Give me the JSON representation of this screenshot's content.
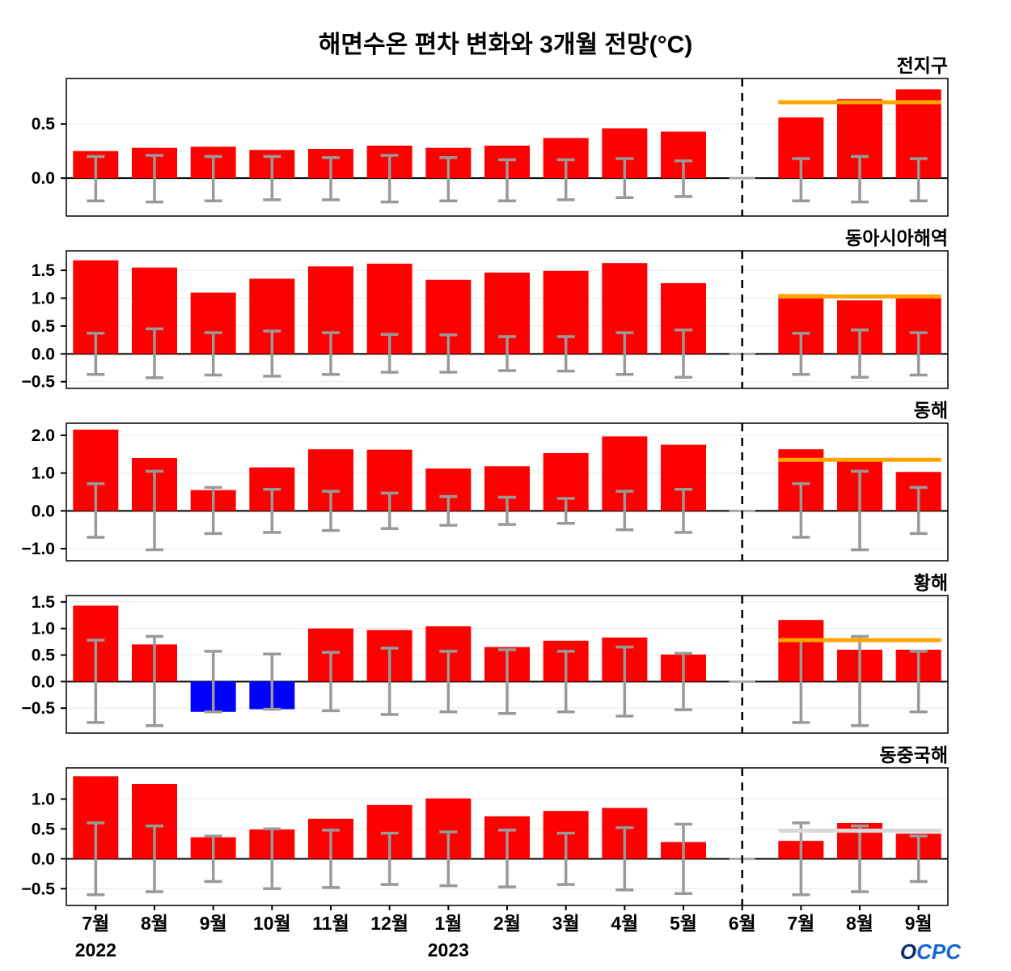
{
  "title": "해면수온 편차 변화와 3개월 전망(°C)",
  "logo": "OCPC",
  "x_labels": [
    "7월",
    "8월",
    "9월",
    "10월",
    "11월",
    "12월",
    "1월",
    "2월",
    "3월",
    "4월",
    "5월",
    "6월",
    "7월",
    "8월",
    "9월"
  ],
  "year_labels": [
    {
      "label": "2022",
      "month_index": 0
    },
    {
      "label": "2023",
      "month_index": 6
    }
  ],
  "colors": {
    "positive_bar": "#ff0000",
    "negative_bar": "#0000ff",
    "whisker": "#999999",
    "forecast_line": "#ffa500",
    "forecast_line_gray": "#d9d9d9",
    "divider": "#000000",
    "grid": "#e8e8e8",
    "logo_blue": "#1565d8",
    "logo_dark": "#0a2e6b"
  },
  "chart_data": [
    {
      "type": "bar",
      "title": "전지구",
      "ylim": [
        -0.35,
        0.92
      ],
      "yticks": [
        0.0,
        0.5
      ],
      "values": [
        0.25,
        0.28,
        0.29,
        0.26,
        0.27,
        0.3,
        0.28,
        0.3,
        0.37,
        0.46,
        0.43,
        null,
        0.56,
        0.73,
        0.82
      ],
      "whisker_hi": [
        0.2,
        0.21,
        0.2,
        0.2,
        0.19,
        0.21,
        0.19,
        0.17,
        0.17,
        0.18,
        0.16,
        null,
        0.18,
        0.2,
        0.18
      ],
      "whisker_lo": [
        -0.21,
        -0.22,
        -0.21,
        -0.2,
        -0.2,
        -0.22,
        -0.21,
        -0.21,
        -0.2,
        -0.18,
        -0.17,
        null,
        -0.21,
        -0.22,
        -0.21
      ],
      "forecast_line": 0.7,
      "forecast_start_index": 12,
      "no_data_index": 11
    },
    {
      "type": "bar",
      "title": "동아시아해역",
      "ylim": [
        -0.62,
        1.85
      ],
      "yticks": [
        -0.5,
        0.0,
        0.5,
        1.0,
        1.5
      ],
      "values": [
        1.68,
        1.55,
        1.1,
        1.35,
        1.57,
        1.62,
        1.33,
        1.46,
        1.49,
        1.63,
        1.27,
        null,
        1.07,
        0.96,
        1.01
      ],
      "whisker_hi": [
        0.37,
        0.45,
        0.38,
        0.41,
        0.38,
        0.35,
        0.34,
        0.31,
        0.31,
        0.38,
        0.43,
        null,
        0.37,
        0.43,
        0.38
      ],
      "whisker_lo": [
        -0.37,
        -0.43,
        -0.38,
        -0.4,
        -0.37,
        -0.33,
        -0.33,
        -0.3,
        -0.31,
        -0.37,
        -0.42,
        null,
        -0.37,
        -0.42,
        -0.38
      ],
      "forecast_line": 1.03,
      "forecast_start_index": 12,
      "no_data_index": 11
    },
    {
      "type": "bar",
      "title": "동해",
      "ylim": [
        -1.32,
        2.32
      ],
      "yticks": [
        -1.0,
        0.0,
        1.0,
        2.0
      ],
      "values": [
        2.15,
        1.4,
        0.55,
        1.15,
        1.63,
        1.62,
        1.12,
        1.18,
        1.53,
        1.97,
        1.75,
        null,
        1.63,
        1.32,
        1.03
      ],
      "whisker_hi": [
        0.72,
        1.05,
        0.62,
        0.57,
        0.52,
        0.47,
        0.38,
        0.36,
        0.33,
        0.52,
        0.57,
        null,
        0.72,
        1.05,
        0.62
      ],
      "whisker_lo": [
        -0.7,
        -1.03,
        -0.6,
        -0.57,
        -0.52,
        -0.47,
        -0.38,
        -0.36,
        -0.33,
        -0.5,
        -0.57,
        null,
        -0.7,
        -1.03,
        -0.6
      ],
      "forecast_line": 1.35,
      "forecast_start_index": 12,
      "no_data_index": 11
    },
    {
      "type": "bar",
      "title": "황해",
      "ylim": [
        -0.97,
        1.62
      ],
      "yticks": [
        -0.5,
        0.0,
        0.5,
        1.0,
        1.5
      ],
      "values": [
        1.43,
        0.7,
        -0.57,
        -0.52,
        1.0,
        0.97,
        1.04,
        0.65,
        0.77,
        0.83,
        0.51,
        null,
        1.16,
        0.6,
        0.6
      ],
      "whisker_hi": [
        0.78,
        0.85,
        0.57,
        0.52,
        0.55,
        0.63,
        0.57,
        0.6,
        0.57,
        0.65,
        0.53,
        null,
        0.78,
        0.85,
        0.57
      ],
      "whisker_lo": [
        -0.77,
        -0.83,
        -0.57,
        -0.52,
        -0.55,
        -0.62,
        -0.57,
        -0.6,
        -0.57,
        -0.65,
        -0.53,
        null,
        -0.77,
        -0.83,
        -0.57
      ],
      "forecast_line": 0.78,
      "forecast_start_index": 12,
      "no_data_index": 11
    },
    {
      "type": "bar",
      "title": "동중국해",
      "ylim": [
        -0.78,
        1.52
      ],
      "yticks": [
        -0.5,
        0.0,
        0.5,
        1.0
      ],
      "values": [
        1.38,
        1.25,
        0.36,
        0.49,
        0.67,
        0.9,
        1.01,
        0.71,
        0.8,
        0.85,
        0.28,
        null,
        0.3,
        0.6,
        0.42
      ],
      "whisker_hi": [
        0.6,
        0.55,
        0.38,
        0.5,
        0.48,
        0.43,
        0.45,
        0.48,
        0.43,
        0.52,
        0.58,
        null,
        0.6,
        0.55,
        0.38
      ],
      "whisker_lo": [
        -0.6,
        -0.55,
        -0.38,
        -0.5,
        -0.48,
        -0.43,
        -0.45,
        -0.47,
        -0.43,
        -0.52,
        -0.58,
        null,
        -0.6,
        -0.55,
        -0.38
      ],
      "forecast_line": 0.47,
      "forecast_line_color": "#d9d9d9",
      "forecast_start_index": 12,
      "no_data_index": 11
    }
  ]
}
